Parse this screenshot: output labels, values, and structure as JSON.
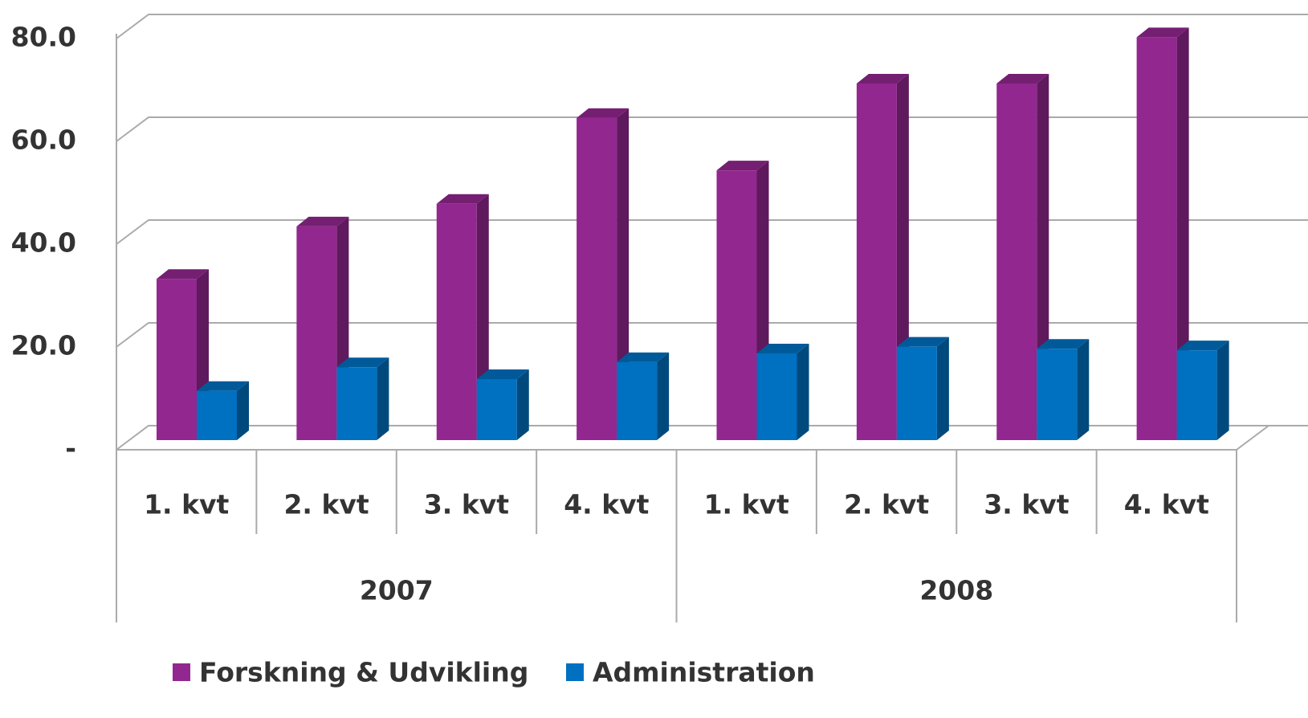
{
  "chart_data": {
    "type": "bar3d",
    "categories": [
      "1. kvt",
      "2. kvt",
      "3. kvt",
      "4. kvt",
      "1. kvt",
      "2. kvt",
      "3. kvt",
      "4. kvt"
    ],
    "group_labels": [
      "2007",
      "2008"
    ],
    "series": [
      {
        "name": "Forskning & Udvikling",
        "color": "#92278f",
        "values": [
          32.0,
          42.2,
          46.6,
          63.3,
          53.1,
          70.0,
          70.0,
          79.0
        ]
      },
      {
        "name": "Administration",
        "color": "#0070c0",
        "values": [
          10.2,
          14.8,
          12.5,
          15.8,
          17.5,
          18.8,
          18.4,
          18.1
        ]
      }
    ],
    "ylim": [
      0,
      80
    ],
    "yticks": [
      {
        "value": 0,
        "label": "-"
      },
      {
        "value": 20,
        "label": "20.0"
      },
      {
        "value": 40,
        "label": "40.0"
      },
      {
        "value": 60,
        "label": "60.0"
      },
      {
        "value": 80,
        "label": "80.0"
      }
    ],
    "grid": true,
    "legend": "bottom"
  }
}
